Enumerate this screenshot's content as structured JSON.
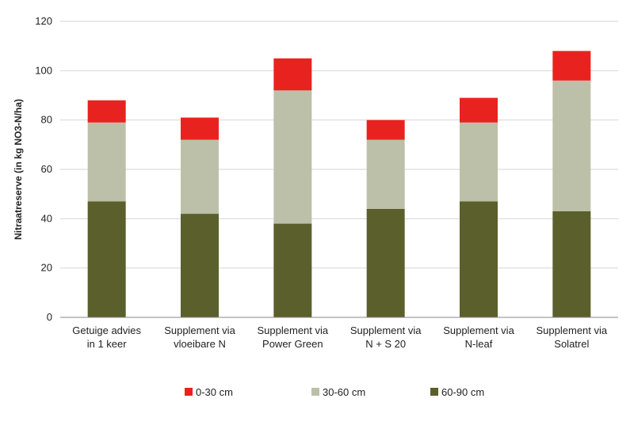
{
  "chart_data": {
    "type": "bar",
    "stacked": true,
    "title": "",
    "xlabel": "",
    "ylabel": "Nitraatreserve (in kg NO3-N/ha)",
    "ylim": [
      0,
      120
    ],
    "yticks": [
      0,
      20,
      40,
      60,
      80,
      100,
      120
    ],
    "grid": "horizontal",
    "legend_position": "bottom",
    "categories": [
      [
        "Getuige advies",
        "in 1 keer"
      ],
      [
        "Supplement via",
        "vloeibare N"
      ],
      [
        "Supplement via",
        "Power Green"
      ],
      [
        "Supplement via",
        "N + S 20"
      ],
      [
        "Supplement via",
        "N-leaf"
      ],
      [
        "Supplement via",
        "Solatrel"
      ]
    ],
    "series": [
      {
        "name": "60-90 cm",
        "color": "#5b5f2b",
        "values": [
          47,
          42,
          38,
          44,
          47,
          43
        ]
      },
      {
        "name": "30-60 cm",
        "color": "#bcc0a8",
        "values": [
          32,
          30,
          54,
          28,
          32,
          53
        ]
      },
      {
        "name": "0-30 cm",
        "color": "#e8231f",
        "values": [
          9,
          9,
          13,
          8,
          10,
          12
        ]
      }
    ],
    "legend_order": [
      "0-30 cm",
      "30-60 cm",
      "60-90 cm"
    ]
  }
}
